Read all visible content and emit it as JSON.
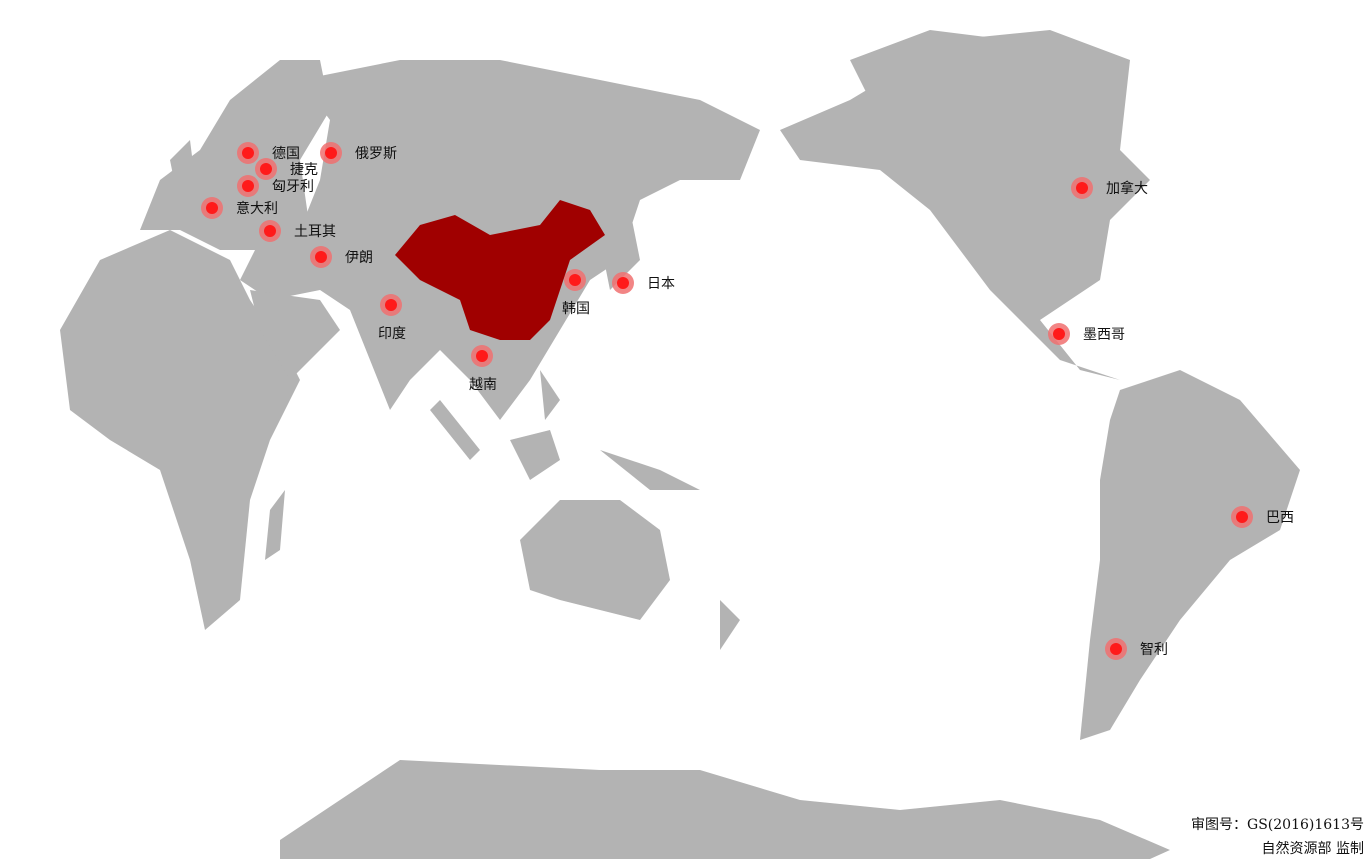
{
  "colors": {
    "land": "#b3b3b3",
    "highlight": "#a00000",
    "marker": "#ff1a1a",
    "marker_halo": "#f07070"
  },
  "highlight_country": "china",
  "markers": [
    {
      "label": "德国",
      "pos": "right"
    },
    {
      "label": "捷克",
      "pos": "right"
    },
    {
      "label": "匈牙利",
      "pos": "right"
    },
    {
      "label": "意大利",
      "pos": "right"
    },
    {
      "label": "土耳其",
      "pos": "right"
    },
    {
      "label": "俄罗斯",
      "pos": "right"
    },
    {
      "label": "伊朗",
      "pos": "right"
    },
    {
      "label": "印度",
      "pos": "bottom"
    },
    {
      "label": "越南",
      "pos": "bottom"
    },
    {
      "label": "韩国",
      "pos": "bottom"
    },
    {
      "label": "日本",
      "pos": "right"
    },
    {
      "label": "加拿大",
      "pos": "right"
    },
    {
      "label": "墨西哥",
      "pos": "right"
    },
    {
      "label": "巴西",
      "pos": "right"
    },
    {
      "label": "智利",
      "pos": "right"
    }
  ],
  "footer": {
    "approval": "审图号：GS(2016)1613号",
    "issuer": "自然资源部 监制"
  }
}
